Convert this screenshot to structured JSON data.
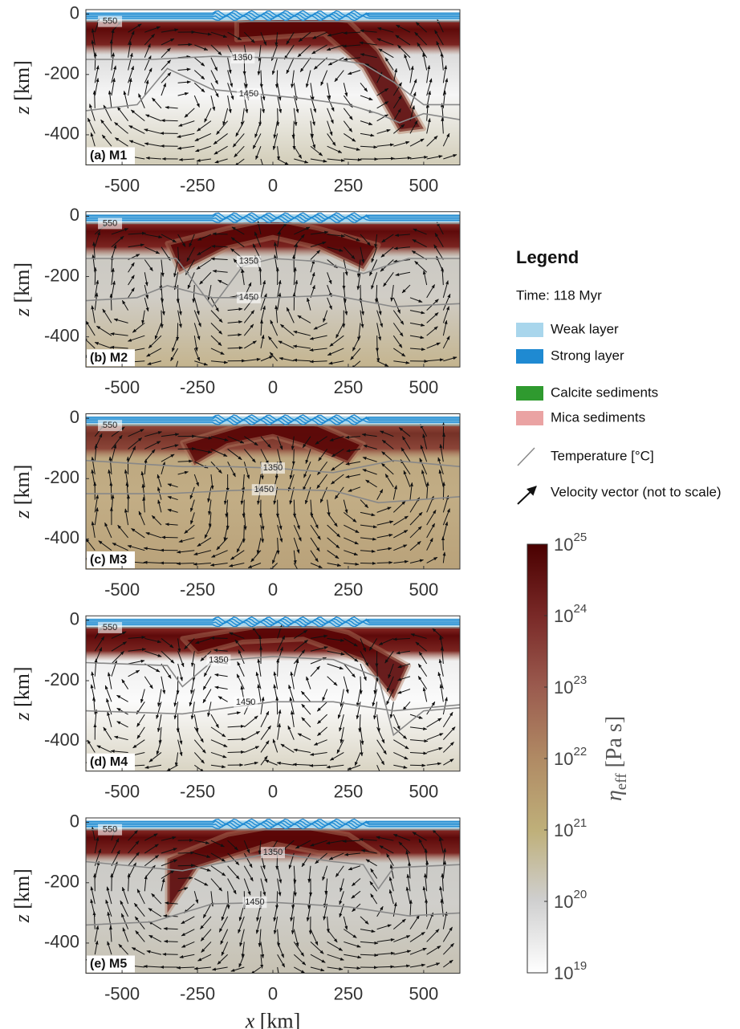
{
  "chart_data": [
    {
      "type": "field",
      "title": "(a) M1",
      "xlim": [
        -620,
        620
      ],
      "xticks": [
        -500,
        -250,
        0,
        250,
        500
      ],
      "ylim": [
        -500,
        15
      ],
      "yticks": [
        0,
        -200,
        -400
      ],
      "ylabel": "z [km]",
      "isotherms": [
        550,
        1350,
        1450
      ]
    },
    {
      "type": "field",
      "title": "(b) M2",
      "xlim": [
        -620,
        620
      ],
      "xticks": [
        -500,
        -250,
        0,
        250,
        500
      ],
      "ylim": [
        -500,
        15
      ],
      "yticks": [
        0,
        -200,
        -400
      ],
      "ylabel": "z [km]",
      "isotherms": [
        550,
        1350,
        1450
      ]
    },
    {
      "type": "field",
      "title": "(c) M3",
      "xlim": [
        -620,
        620
      ],
      "xticks": [
        -500,
        -250,
        0,
        250,
        500
      ],
      "ylim": [
        -500,
        15
      ],
      "yticks": [
        0,
        -200,
        -400
      ],
      "ylabel": "z [km]",
      "isotherms": [
        550,
        1350,
        1450
      ]
    },
    {
      "type": "field",
      "title": "(d) M4",
      "xlim": [
        -620,
        620
      ],
      "xticks": [
        -500,
        -250,
        0,
        250,
        500
      ],
      "ylim": [
        -500,
        15
      ],
      "yticks": [
        0,
        -200,
        -400
      ],
      "ylabel": "z [km]",
      "isotherms": [
        550,
        1350,
        1450
      ]
    },
    {
      "type": "field",
      "title": "(e) M5",
      "xlim": [
        -620,
        620
      ],
      "xticks": [
        -500,
        -250,
        0,
        250,
        500
      ],
      "ylim": [
        -500,
        15
      ],
      "yticks": [
        0,
        -200,
        -400
      ],
      "ylabel": "z [km]",
      "xlabel": "x [km]",
      "isotherms": [
        550,
        1350,
        1450
      ]
    },
    {
      "type": "colorbar",
      "label": "η_eff [Pa s]",
      "log": true,
      "clim": [
        1e+19,
        1e+25
      ],
      "ticks": [
        {
          "value": 1e+19,
          "label": "10^19"
        },
        {
          "value": 1e+20,
          "label": "10^20"
        },
        {
          "value": 1e+21,
          "label": "10^21"
        },
        {
          "value": 1e+22,
          "label": "10^22"
        },
        {
          "value": 1e+23,
          "label": "10^23"
        },
        {
          "value": 1e+24,
          "label": "10^24"
        },
        {
          "value": 1e+25,
          "label": "10^25"
        }
      ]
    }
  ],
  "legend": {
    "title": "Legend",
    "time": "Time: 118 Myr",
    "items": [
      {
        "label": "Weak layer",
        "color": "#a9d6ec"
      },
      {
        "label": "Strong layer",
        "color": "#1f8ad2"
      },
      {
        "label": "Calcite sediments",
        "color": "#2f9a2f"
      },
      {
        "label": "Mica sediments",
        "color": "#eaa3a3"
      }
    ],
    "temperature": "Temperature [°C]",
    "velocity": "Velocity vector (not to scale)"
  }
}
